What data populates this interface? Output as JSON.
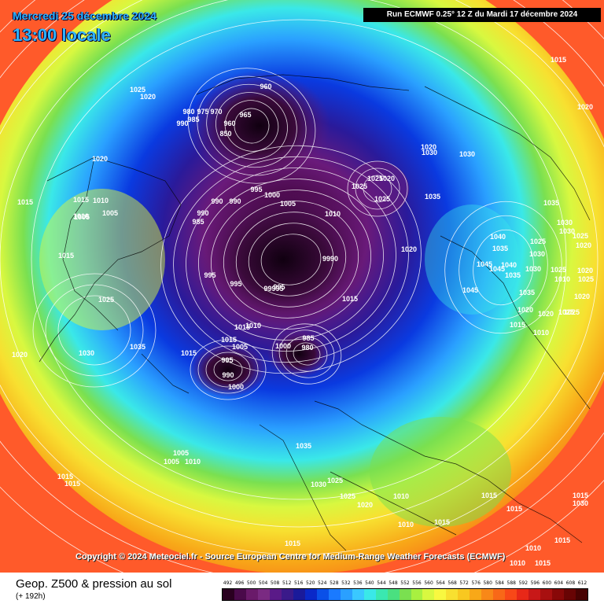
{
  "header": {
    "date": "Mercredi 25 décembre 2024",
    "time": "13:00 locale",
    "run": "Run ECMWF 0.25° 12 Z du Mardi 17 décembre 2024"
  },
  "copyright": "Copyright © 2024 Meteociel.fr - Source European Centre for Medium-Range Weather Forecasts (ECMWF)",
  "footer": {
    "title": "Geop. Z500 & pression au sol",
    "subtitle": "(+ 192h)"
  },
  "scale": {
    "labels": [
      "492",
      "496",
      "500",
      "504",
      "508",
      "512",
      "516",
      "520",
      "524",
      "528",
      "532",
      "536",
      "540",
      "544",
      "548",
      "552",
      "556",
      "560",
      "564",
      "568",
      "572",
      "576",
      "580",
      "584",
      "588",
      "592",
      "596",
      "600",
      "604",
      "608",
      "612"
    ],
    "colors": [
      "#2a0020",
      "#4a0a4a",
      "#6a1a6a",
      "#7a2a82",
      "#5a1a88",
      "#3a1a8a",
      "#1a1a9a",
      "#0a28c8",
      "#0a50e8",
      "#1a7aff",
      "#2aa0ff",
      "#3ac8ff",
      "#3ae8e8",
      "#3ae8b0",
      "#4ae080",
      "#7ae050",
      "#a8f040",
      "#d8f840",
      "#f8f840",
      "#f8e030",
      "#f8c820",
      "#f8a818",
      "#f88818",
      "#f86818",
      "#f84818",
      "#e82818",
      "#c81818",
      "#a81010",
      "#880808",
      "#680404",
      "#480202"
    ]
  },
  "map_labels": [
    {
      "text": "960"
    },
    {
      "text": "965"
    },
    {
      "text": "980"
    },
    {
      "text": "975"
    },
    {
      "text": "970"
    },
    {
      "text": "985"
    },
    {
      "text": "990"
    },
    {
      "text": "850"
    },
    {
      "text": "960"
    },
    {
      "text": "1025"
    },
    {
      "text": "1020"
    },
    {
      "text": "1020"
    },
    {
      "text": "1015"
    },
    {
      "text": "1015"
    },
    {
      "text": "1010"
    },
    {
      "text": "1010"
    },
    {
      "text": "1005"
    },
    {
      "text": "1005"
    },
    {
      "text": "1015"
    },
    {
      "text": "1025"
    },
    {
      "text": "1035"
    },
    {
      "text": "1030"
    },
    {
      "text": "1020"
    },
    {
      "text": "990"
    },
    {
      "text": "985"
    },
    {
      "text": "990"
    },
    {
      "text": "990"
    },
    {
      "text": "995"
    },
    {
      "text": "1000"
    },
    {
      "text": "1005"
    },
    {
      "text": "1010"
    },
    {
      "text": "995"
    },
    {
      "text": "995"
    },
    {
      "text": "995"
    },
    {
      "text": "9990"
    },
    {
      "text": "99995"
    },
    {
      "text": "1015"
    },
    {
      "text": "1015"
    },
    {
      "text": "1010"
    },
    {
      "text": "1015"
    },
    {
      "text": "1005"
    },
    {
      "text": "1015"
    },
    {
      "text": "995"
    },
    {
      "text": "990"
    },
    {
      "text": "1000"
    },
    {
      "text": "985"
    },
    {
      "text": "980"
    },
    {
      "text": "1000"
    },
    {
      "text": "1025"
    },
    {
      "text": "1025"
    },
    {
      "text": "1025"
    },
    {
      "text": "1020"
    },
    {
      "text": "1030"
    },
    {
      "text": "1035"
    },
    {
      "text": "1020"
    },
    {
      "text": "1020"
    },
    {
      "text": "1015"
    },
    {
      "text": "1020"
    },
    {
      "text": "1030"
    },
    {
      "text": "1035"
    },
    {
      "text": "1040"
    },
    {
      "text": "1035"
    },
    {
      "text": "1045"
    },
    {
      "text": "1045"
    },
    {
      "text": "1040"
    },
    {
      "text": "1035"
    },
    {
      "text": "1030"
    },
    {
      "text": "1045"
    },
    {
      "text": "1035"
    },
    {
      "text": "1025"
    },
    {
      "text": "1030"
    },
    {
      "text": "1030"
    },
    {
      "text": "1020"
    },
    {
      "text": "1025"
    },
    {
      "text": "1030"
    },
    {
      "text": "1025"
    },
    {
      "text": "1020"
    },
    {
      "text": "1010"
    },
    {
      "text": "1025"
    },
    {
      "text": "1020"
    },
    {
      "text": "1020"
    },
    {
      "text": "1015"
    },
    {
      "text": "1020"
    },
    {
      "text": "1025"
    },
    {
      "text": "1010"
    },
    {
      "text": "1025"
    },
    {
      "text": "1005"
    },
    {
      "text": "1005"
    },
    {
      "text": "1010"
    },
    {
      "text": "1015"
    },
    {
      "text": "1015"
    },
    {
      "text": "1035"
    },
    {
      "text": "1030"
    },
    {
      "text": "1025"
    },
    {
      "text": "1025"
    },
    {
      "text": "1020"
    },
    {
      "text": "1010"
    },
    {
      "text": "1010"
    },
    {
      "text": "1015"
    },
    {
      "text": "1015"
    },
    {
      "text": "1015"
    },
    {
      "text": "1015"
    },
    {
      "text": "1030"
    },
    {
      "text": "1015"
    },
    {
      "text": "1015"
    },
    {
      "text": "1010"
    },
    {
      "text": "1010"
    },
    {
      "text": "1015"
    }
  ]
}
